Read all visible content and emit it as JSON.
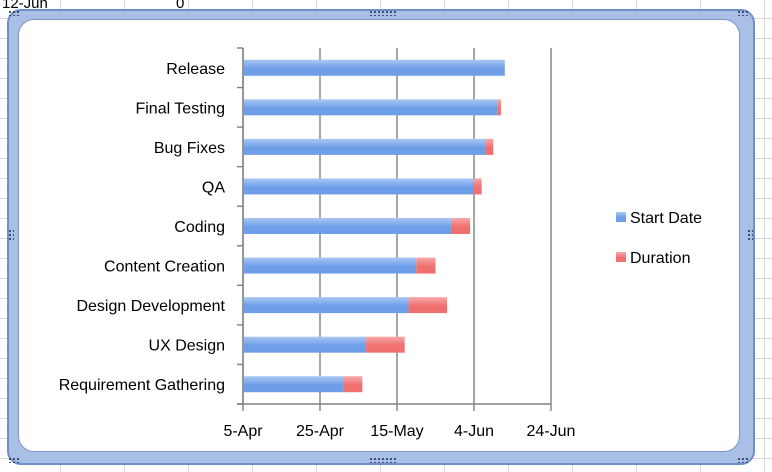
{
  "sheet": {
    "cell_date": "12-Jun",
    "cell_value": "0"
  },
  "colors": {
    "start": "#6f9ee8",
    "start_light": "#a9c8f4",
    "duration": "#f07070",
    "duration_light": "#f7a8a8",
    "axis": "#808080"
  },
  "chart_data": {
    "type": "bar",
    "orientation": "horizontal",
    "stacked": true,
    "title": "",
    "xlabel": "",
    "ylabel": "",
    "categories": [
      "Release",
      "Final Testing",
      "Bug Fixes",
      "QA",
      "Coding",
      "Content Creation",
      "Design Development",
      "UX Design",
      "Requirement Gathering"
    ],
    "series": [
      {
        "name": "Start Date",
        "values": [
          "2023-06-12",
          "2023-06-10",
          "2023-06-07",
          "2023-06-04",
          "2023-05-29",
          "2023-05-20",
          "2023-05-18",
          "2023-05-07",
          "2023-05-01"
        ]
      },
      {
        "name": "Duration",
        "values": [
          0,
          1,
          2,
          2,
          5,
          5,
          10,
          10,
          5
        ]
      }
    ],
    "x_ticks": [
      "5-Apr",
      "25-Apr",
      "15-May",
      "4-Jun",
      "24-Jun"
    ],
    "xlim": [
      "2023-04-05",
      "2023-06-24"
    ],
    "grid": true,
    "legend": "right"
  }
}
